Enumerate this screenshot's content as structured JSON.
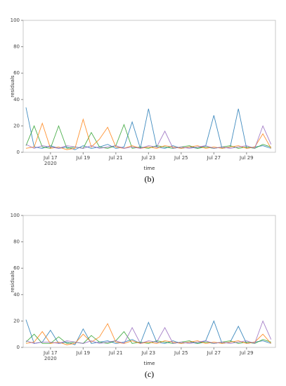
{
  "chart_data": [
    {
      "type": "line",
      "label": "(b)",
      "xlabel": "time",
      "ylabel": "residuals",
      "xlim": [
        15.33,
        30.77
      ],
      "ylim": [
        0,
        100
      ],
      "yticks": [
        0,
        20,
        40,
        60,
        80,
        100
      ],
      "xticks": [
        {
          "value": 17,
          "label": "Jul 17"
        },
        {
          "value": 19,
          "label": "Jul 19"
        },
        {
          "value": 21,
          "label": "Jul 21"
        },
        {
          "value": 23,
          "label": "Jul 23"
        },
        {
          "value": 25,
          "label": "Jul 25"
        },
        {
          "value": 27,
          "label": "Jul 27"
        },
        {
          "value": 29,
          "label": "Jul 29"
        }
      ],
      "xtick_year": "2020",
      "x": [
        15.5,
        16,
        16.5,
        17,
        17.5,
        18,
        18.5,
        19,
        19.5,
        20,
        20.5,
        21,
        21.5,
        22,
        22.5,
        23,
        23.5,
        24,
        24.5,
        25,
        25.5,
        26,
        26.5,
        27,
        27.5,
        28,
        28.5,
        29,
        29.5,
        30,
        30.5
      ],
      "series": [
        {
          "color": "#1f77b4",
          "values": [
            34,
            4,
            3,
            5,
            3,
            4,
            2,
            5,
            3,
            4,
            6,
            3,
            4,
            23,
            3,
            33,
            4,
            3,
            5,
            3,
            4,
            3,
            5,
            28,
            3,
            4,
            33,
            3,
            4,
            5,
            3
          ]
        },
        {
          "color": "#2ca02c",
          "values": [
            5,
            20,
            4,
            3,
            20,
            3,
            4,
            3,
            15,
            4,
            3,
            5,
            21,
            3,
            4,
            3,
            5,
            4,
            3,
            4,
            5,
            3,
            4,
            3,
            4,
            5,
            3,
            4,
            3,
            6,
            4
          ]
        },
        {
          "color": "#ff7f0e",
          "values": [
            3,
            4,
            22,
            3,
            4,
            2,
            3,
            25,
            4,
            10,
            19,
            4,
            3,
            5,
            3,
            4,
            3,
            5,
            4,
            3,
            4,
            5,
            3,
            4,
            3,
            4,
            5,
            3,
            4,
            14,
            3
          ]
        },
        {
          "color": "#9467bd",
          "values": [
            6,
            3,
            5,
            4,
            3,
            5,
            4,
            3,
            5,
            3,
            4,
            5,
            3,
            4,
            3,
            5,
            4,
            16,
            3,
            4,
            3,
            4,
            5,
            3,
            4,
            3,
            4,
            5,
            3,
            20,
            6
          ]
        }
      ]
    },
    {
      "type": "line",
      "label": "(c)",
      "xlabel": "time",
      "ylabel": "residuals",
      "xlim": [
        15.33,
        30.77
      ],
      "ylim": [
        0,
        100
      ],
      "yticks": [
        0,
        20,
        40,
        60,
        80,
        100
      ],
      "xticks": [
        {
          "value": 17,
          "label": "Jul 17"
        },
        {
          "value": 19,
          "label": "Jul 19"
        },
        {
          "value": 21,
          "label": "Jul 21"
        },
        {
          "value": 23,
          "label": "Jul 23"
        },
        {
          "value": 25,
          "label": "Jul 25"
        },
        {
          "value": 27,
          "label": "Jul 27"
        },
        {
          "value": 29,
          "label": "Jul 29"
        }
      ],
      "xtick_year": "2020",
      "x": [
        15.5,
        16,
        16.5,
        17,
        17.5,
        18,
        18.5,
        19,
        19.5,
        20,
        20.5,
        21,
        21.5,
        22,
        22.5,
        23,
        23.5,
        24,
        24.5,
        25,
        25.5,
        26,
        26.5,
        27,
        27.5,
        28,
        28.5,
        29,
        29.5,
        30,
        30.5
      ],
      "series": [
        {
          "color": "#1f77b4",
          "values": [
            21,
            3,
            4,
            13,
            3,
            4,
            2,
            14,
            3,
            4,
            5,
            3,
            4,
            6,
            3,
            19,
            4,
            3,
            5,
            3,
            4,
            3,
            5,
            20,
            3,
            4,
            16,
            3,
            4,
            5,
            3
          ]
        },
        {
          "color": "#2ca02c",
          "values": [
            4,
            10,
            3,
            3,
            8,
            3,
            4,
            3,
            9,
            4,
            3,
            5,
            12,
            3,
            4,
            3,
            5,
            4,
            3,
            4,
            5,
            3,
            4,
            3,
            4,
            5,
            3,
            4,
            3,
            6,
            4
          ]
        },
        {
          "color": "#ff7f0e",
          "values": [
            3,
            4,
            12,
            3,
            4,
            2,
            3,
            10,
            4,
            8,
            18,
            4,
            3,
            5,
            3,
            4,
            3,
            5,
            4,
            3,
            4,
            5,
            3,
            4,
            3,
            4,
            5,
            3,
            4,
            10,
            3
          ]
        },
        {
          "color": "#9467bd",
          "values": [
            5,
            3,
            4,
            4,
            3,
            5,
            4,
            3,
            5,
            3,
            4,
            5,
            3,
            15,
            3,
            5,
            4,
            15,
            3,
            4,
            3,
            4,
            5,
            3,
            4,
            3,
            4,
            5,
            3,
            20,
            6
          ]
        }
      ]
    }
  ]
}
